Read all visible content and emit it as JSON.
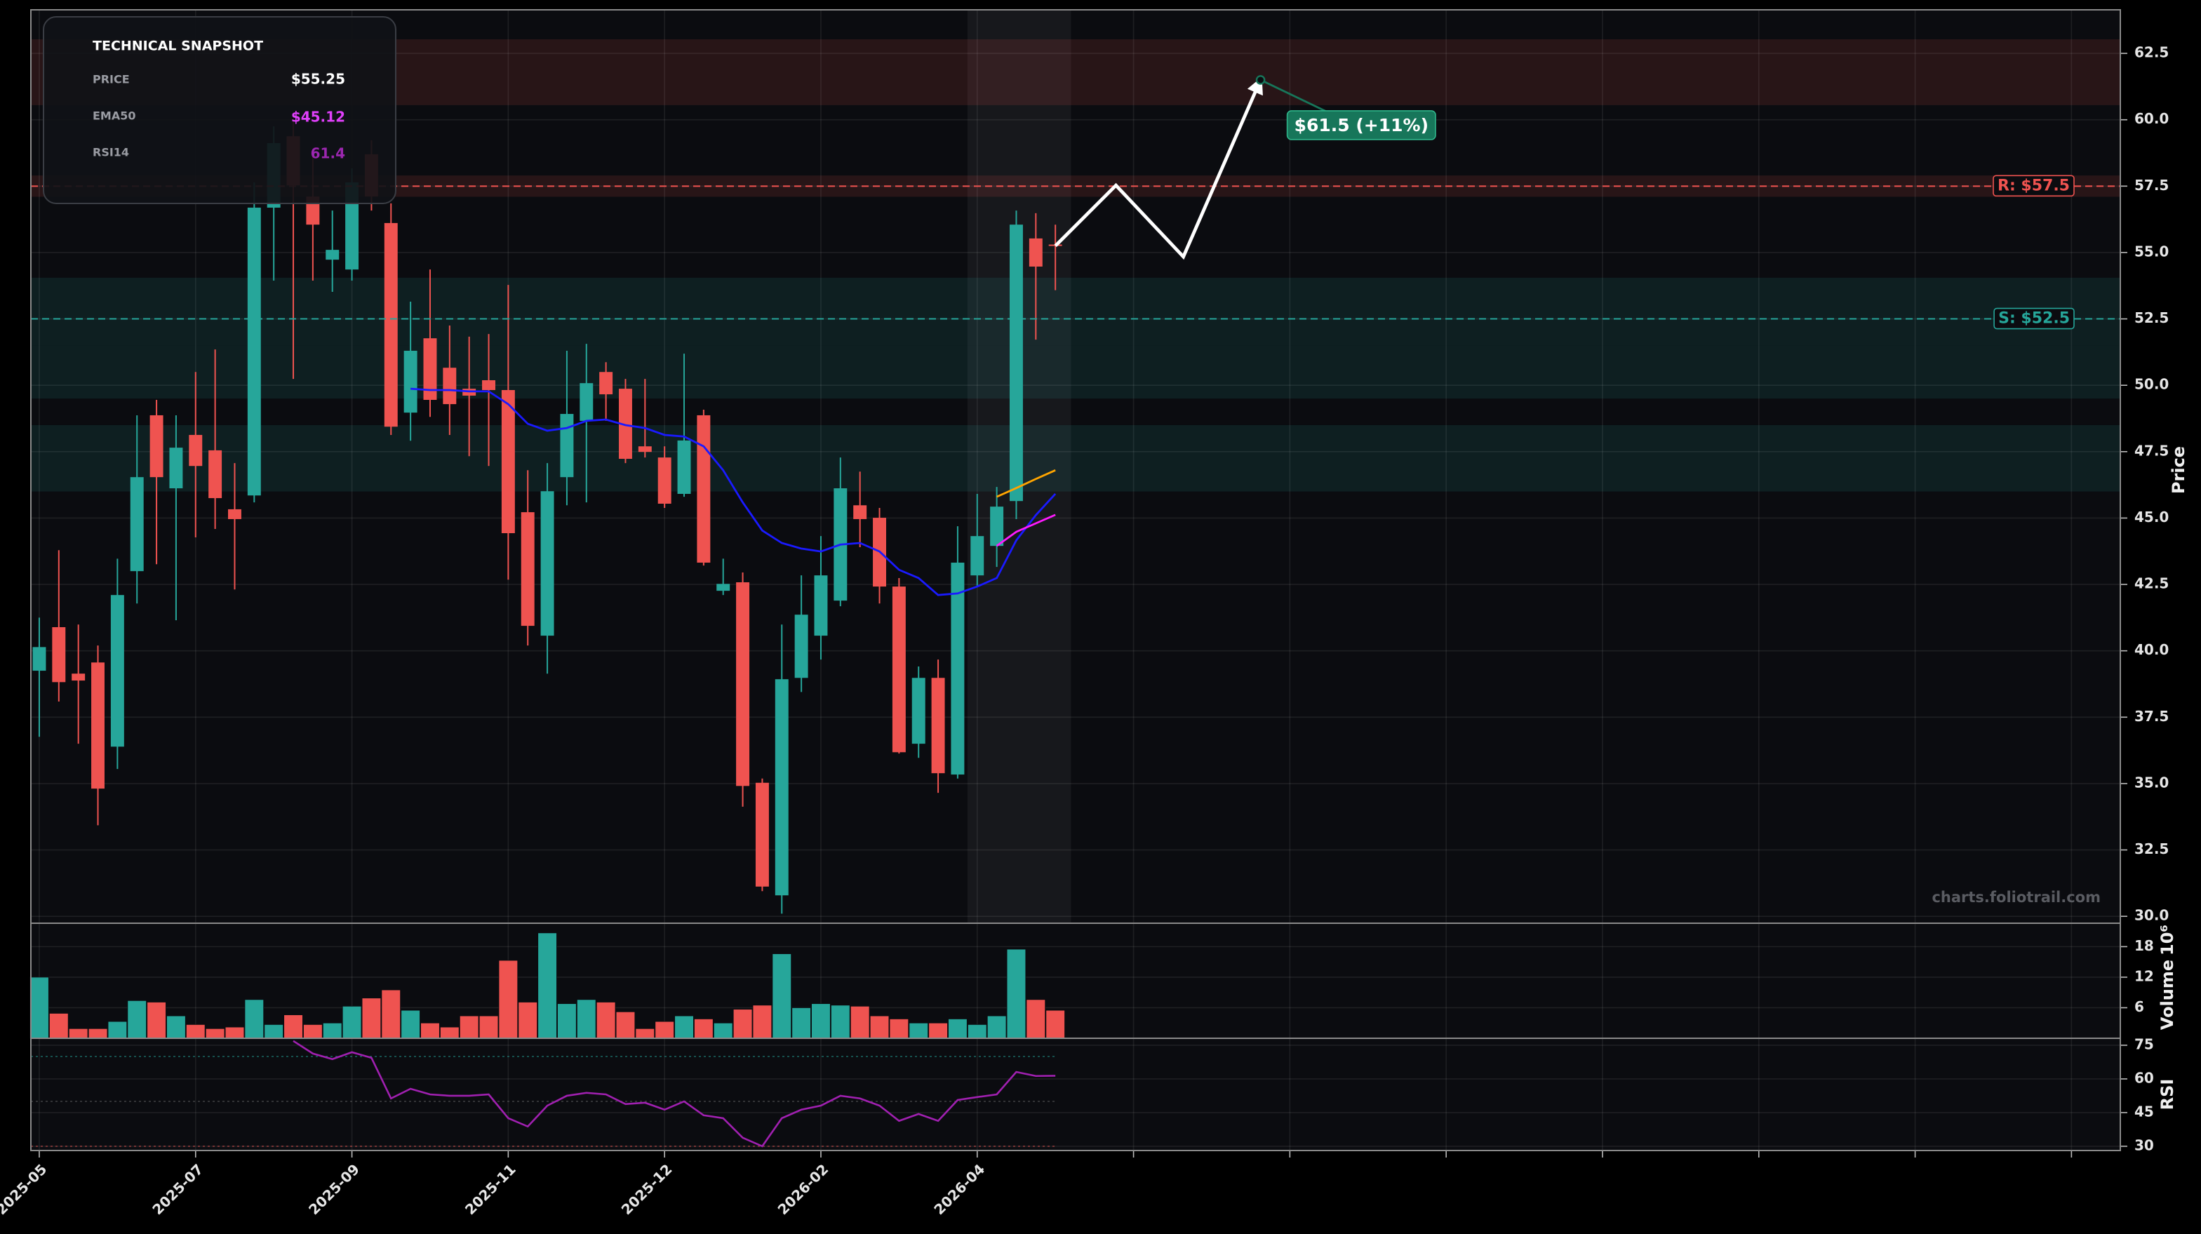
{
  "chart_data": [
    {
      "type": "candlestick",
      "ylabel": "Price",
      "xlim": [
        -0.43,
        106.5
      ],
      "ylim": [
        29.74,
        64.14
      ],
      "yticks": [
        {
          "value": 30,
          "label": "30.0"
        },
        32.5,
        {
          "value": 35,
          "label": "35.0"
        },
        37.5,
        {
          "value": 40,
          "label": "40.0"
        },
        42.5,
        {
          "value": 45,
          "label": "45.0"
        },
        47.5,
        {
          "value": 50,
          "label": "50.0"
        },
        52.5,
        {
          "value": 55,
          "label": "55.0"
        },
        57.5,
        {
          "value": 60,
          "label": "60.0"
        },
        62.5
      ],
      "xticks": [
        {
          "value": 0,
          "label": "2025-05"
        },
        {
          "value": 8,
          "label": "2025-07"
        },
        {
          "value": 16,
          "label": "2025-09"
        },
        {
          "value": 24,
          "label": "2025-11"
        },
        {
          "value": 32,
          "label": "2025-12"
        },
        {
          "value": 40,
          "label": "2026-02"
        },
        {
          "value": 48,
          "label": "2026-04"
        },
        {
          "value": 56,
          "label": null
        },
        {
          "value": 64,
          "label": null
        },
        {
          "value": 72,
          "label": null
        },
        {
          "value": 80,
          "label": null
        },
        {
          "value": 88,
          "label": null
        },
        {
          "value": 96,
          "label": null
        },
        {
          "value": 104,
          "label": null
        }
      ],
      "up_color": "#26a69a",
      "down_color": "#ef5350",
      "grid": true,
      "open": [
        39.25,
        40.89,
        39.14,
        39.56,
        36.39,
        43.0,
        48.87,
        46.12,
        48.13,
        47.55,
        45.33,
        45.85,
        56.69,
        59.38,
        57.11,
        54.73,
        54.36,
        58.7,
        56.11,
        48.97,
        51.77,
        50.66,
        49.87,
        50.19,
        49.82,
        45.22,
        40.57,
        46.54,
        48.66,
        50.5,
        49.87,
        47.7,
        47.28,
        45.91,
        48.87,
        42.26,
        42.58,
        35.03,
        30.79,
        38.98,
        40.57,
        41.89,
        45.48,
        45.01,
        42.42,
        36.5,
        38.98,
        35.34,
        42.84,
        43.95,
        45.64,
        55.53,
        55.3
      ],
      "high": [
        41.25,
        43.79,
        40.99,
        40.2,
        43.47,
        48.87,
        49.45,
        48.87,
        50.5,
        51.35,
        47.07,
        57.64,
        59.75,
        60.02,
        58.7,
        56.58,
        58.17,
        59.23,
        56.85,
        53.15,
        54.36,
        52.25,
        51.83,
        51.93,
        53.78,
        46.8,
        47.07,
        51.3,
        51.56,
        50.87,
        50.24,
        50.24,
        47.7,
        51.19,
        49.08,
        43.47,
        42.95,
        35.19,
        40.99,
        42.84,
        44.32,
        47.28,
        46.75,
        45.38,
        42.74,
        39.41,
        39.67,
        44.69,
        45.91,
        46.17,
        56.58,
        56.48,
        56.05
      ],
      "low": [
        36.76,
        38.09,
        36.5,
        33.43,
        35.55,
        41.78,
        43.26,
        41.15,
        44.27,
        44.59,
        42.31,
        45.59,
        53.94,
        50.24,
        53.94,
        53.52,
        53.94,
        56.58,
        48.13,
        47.91,
        48.81,
        48.13,
        47.33,
        46.96,
        42.68,
        40.2,
        39.14,
        45.48,
        45.59,
        48.66,
        47.07,
        47.28,
        45.38,
        45.8,
        43.21,
        42.1,
        34.13,
        30.95,
        30.1,
        38.45,
        39.67,
        41.68,
        43.9,
        41.78,
        36.13,
        35.97,
        34.65,
        35.19,
        42.42,
        43.16,
        44.96,
        51.72,
        53.58
      ],
      "close": [
        40.14,
        38.82,
        38.88,
        34.81,
        42.1,
        46.54,
        46.54,
        47.65,
        46.96,
        45.75,
        44.96,
        56.69,
        59.12,
        57.53,
        56.05,
        55.1,
        57.64,
        57.11,
        48.44,
        51.3,
        49.45,
        49.29,
        49.61,
        49.82,
        44.43,
        40.94,
        46.01,
        48.92,
        50.08,
        49.66,
        47.23,
        47.49,
        45.54,
        47.92,
        43.32,
        42.52,
        34.91,
        31.12,
        38.93,
        41.36,
        42.84,
        46.12,
        44.96,
        42.42,
        36.18,
        38.98,
        35.39,
        43.32,
        44.32,
        45.43,
        56.05,
        54.47,
        55.25
      ],
      "lines": [
        {
          "color": "#1a1aff",
          "values": [
            null,
            null,
            null,
            null,
            null,
            null,
            null,
            null,
            null,
            null,
            null,
            null,
            null,
            null,
            null,
            null,
            null,
            null,
            null,
            49.87,
            49.82,
            49.82,
            49.77,
            49.77,
            49.29,
            48.55,
            48.29,
            48.39,
            48.66,
            48.71,
            48.5,
            48.39,
            48.13,
            48.07,
            47.7,
            46.8,
            45.59,
            44.53,
            44.06,
            43.85,
            43.74,
            44.0,
            44.06,
            43.74,
            43.05,
            42.74,
            42.1,
            42.16,
            42.42,
            42.74,
            44.16,
            45.11,
            45.91
          ]
        },
        {
          "color": "#ff1aff",
          "values": [
            null,
            null,
            null,
            null,
            null,
            null,
            null,
            null,
            null,
            null,
            null,
            null,
            null,
            null,
            null,
            null,
            null,
            null,
            null,
            null,
            null,
            null,
            null,
            null,
            null,
            null,
            null,
            null,
            null,
            null,
            null,
            null,
            null,
            null,
            null,
            null,
            null,
            null,
            null,
            null,
            null,
            null,
            null,
            null,
            null,
            null,
            null,
            null,
            null,
            43.95,
            44.48,
            44.8,
            45.12
          ]
        },
        {
          "color": "#ffa500",
          "values": [
            null,
            null,
            null,
            null,
            null,
            null,
            null,
            null,
            null,
            null,
            null,
            null,
            null,
            null,
            null,
            null,
            null,
            null,
            null,
            null,
            null,
            null,
            null,
            null,
            null,
            null,
            null,
            null,
            null,
            null,
            null,
            null,
            null,
            null,
            null,
            null,
            null,
            null,
            null,
            null,
            null,
            null,
            null,
            null,
            null,
            null,
            null,
            null,
            null,
            45.8,
            46.13,
            46.47,
            46.8
          ]
        }
      ],
      "zones": [
        {
          "range": [
            60.55,
            63.03
          ],
          "color": "#ef5350"
        },
        {
          "range": [
            57.1,
            57.9
          ],
          "color": "#ef5350"
        },
        {
          "range": [
            51.51,
            54.05
          ],
          "color": "#26a69a"
        },
        {
          "range": [
            49.5,
            51.51
          ],
          "color": "#26a69a"
        },
        {
          "range": [
            46.0,
            48.5
          ],
          "color": "#26a69a"
        }
      ],
      "levels": [
        {
          "value": 57.5,
          "label": "R: $57.5",
          "color": "#ef5350"
        },
        {
          "value": 52.5,
          "label": "S: $52.5",
          "color": "#26a69a"
        }
      ],
      "highlight_x": [
        47.5,
        52.8
      ],
      "projection": {
        "x": [
          52,
          55.1,
          58.55,
          62.5
        ],
        "values": [
          55.25,
          57.53,
          54.84,
          61.5
        ],
        "label": "$61.5 (+11%)",
        "color": "#ffffff",
        "label_color": "#17765a"
      },
      "watermark": "charts.foliotrail.com"
    },
    {
      "type": "bar",
      "ylabel": "Volume",
      "offset_label": "10⁶",
      "ylim": [
        0,
        22.6
      ],
      "yticks": [
        6,
        12,
        18
      ],
      "values": [
        12.0,
        4.9,
        1.9,
        1.9,
        3.3,
        7.4,
        7.1,
        4.4,
        2.7,
        1.9,
        2.2,
        7.6,
        2.7,
        4.6,
        2.7,
        3.0,
        6.3,
        7.9,
        9.5,
        5.5,
        3.0,
        2.2,
        4.4,
        4.4,
        15.3,
        7.1,
        20.7,
        6.8,
        7.6,
        7.1,
        5.2,
        1.9,
        3.3,
        4.4,
        3.8,
        3.0,
        5.7,
        6.5,
        16.6,
        6.0,
        6.8,
        6.5,
        6.3,
        4.4,
        3.8,
        3.0,
        3.0,
        3.8,
        2.7,
        4.4,
        17.5,
        7.6,
        5.5
      ]
    },
    {
      "type": "line",
      "ylabel": "RSI",
      "ylim": [
        28.1,
        78.1
      ],
      "yticks": [
        30,
        45,
        60,
        75
      ],
      "color": "#a020b0",
      "reference_lines": [
        {
          "value": 70,
          "color": "#26a69a"
        },
        {
          "value": 50,
          "color": "#666666"
        },
        {
          "value": 30,
          "color": "#ef5350"
        }
      ],
      "values": [
        null,
        null,
        null,
        null,
        null,
        null,
        null,
        null,
        null,
        null,
        null,
        null,
        null,
        76.9,
        71.3,
        68.8,
        71.9,
        69.4,
        51.3,
        55.6,
        53.1,
        52.5,
        52.5,
        53.1,
        42.5,
        38.8,
        48.1,
        52.5,
        53.8,
        53.1,
        48.8,
        49.4,
        46.3,
        50,
        43.8,
        42.5,
        33.8,
        30,
        42.5,
        46.3,
        48.1,
        52.5,
        51.3,
        48.1,
        41.3,
        44.4,
        41.3,
        50.6,
        51.9,
        53.1,
        63.1,
        61.3,
        61.4
      ]
    }
  ],
  "snapshot": {
    "title": "TECHNICAL SNAPSHOT",
    "rows": [
      {
        "label": "PRICE",
        "value": "$55.25",
        "color": "#ffffff"
      },
      {
        "label": "EMA50",
        "value": "$45.12",
        "color": "#e040fb"
      },
      {
        "label": "RSI14",
        "value": "61.4",
        "color": "#9c27b0"
      }
    ]
  }
}
